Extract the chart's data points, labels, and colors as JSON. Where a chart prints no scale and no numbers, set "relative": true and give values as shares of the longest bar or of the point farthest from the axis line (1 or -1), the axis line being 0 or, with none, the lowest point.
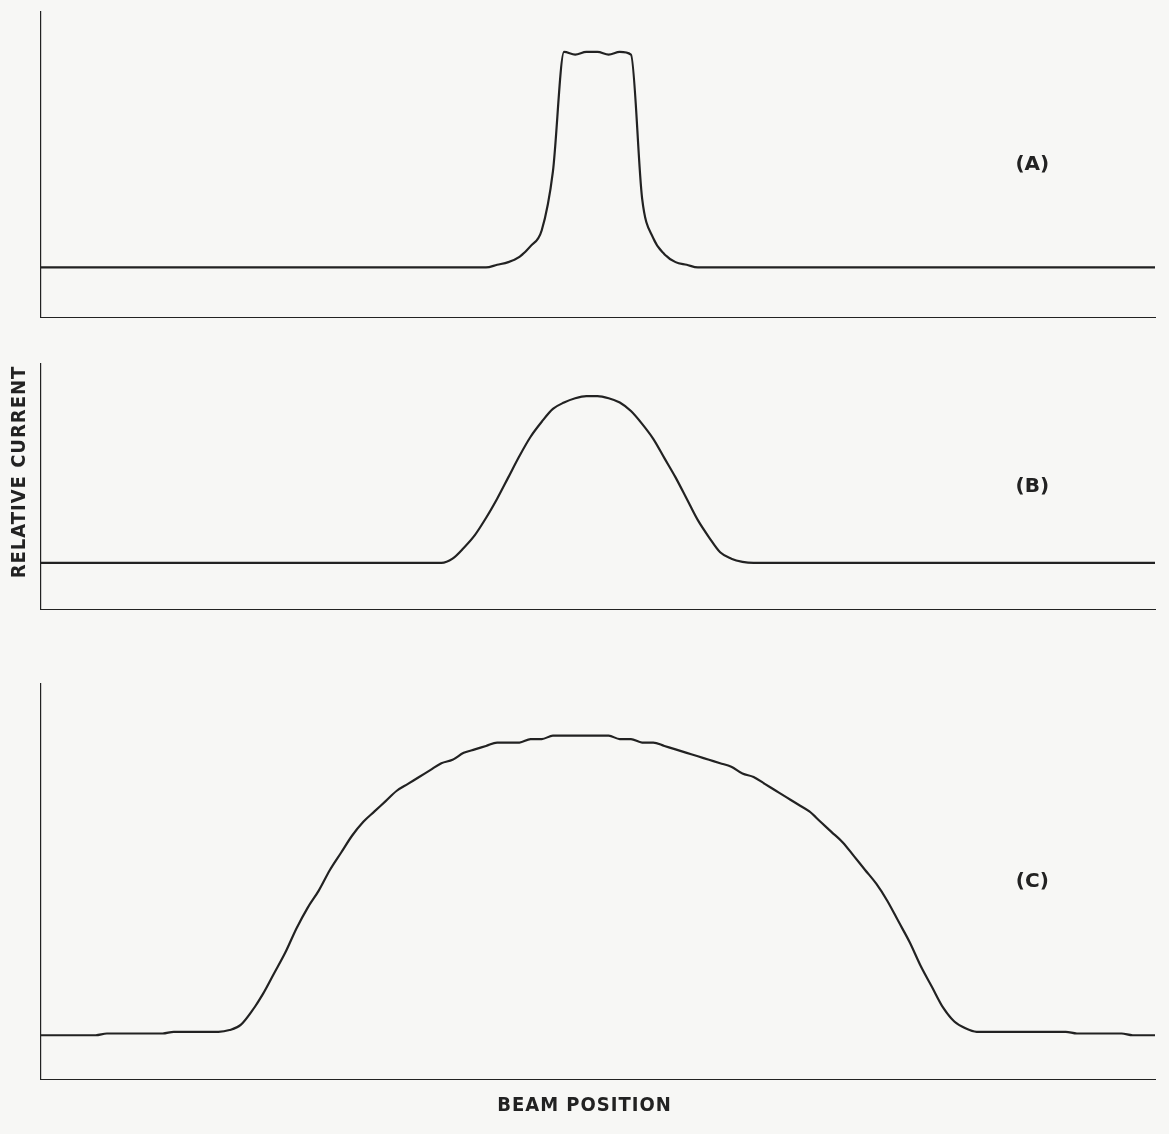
{
  "chart_data": [
    {
      "type": "line",
      "relative": true,
      "color": "#222222",
      "grid": false,
      "legend": false,
      "tick_labels": false,
      "annotations": [
        "(A)"
      ],
      "categories": [
        null,
        null,
        null,
        null,
        null,
        null,
        null,
        null,
        null,
        null,
        null,
        null,
        null,
        null,
        null,
        null,
        null,
        null,
        null,
        null,
        null,
        null,
        null,
        null,
        null,
        null,
        null,
        null,
        null,
        null,
        null,
        null,
        null,
        null,
        null,
        null,
        null,
        null,
        null,
        null,
        null,
        null,
        null,
        null,
        null,
        null,
        null,
        null,
        null,
        null,
        null,
        null,
        null,
        null,
        null,
        null,
        null,
        null,
        null,
        null,
        null,
        null,
        null,
        null,
        null,
        null,
        null,
        null,
        null,
        null,
        null,
        null,
        null,
        null,
        null,
        null,
        null,
        null,
        null,
        null,
        null,
        null,
        null,
        null,
        null,
        null,
        null,
        null,
        null,
        null,
        null,
        null,
        null,
        null,
        null,
        null,
        null,
        null,
        null,
        null,
        null
      ],
      "values": [
        0.19,
        0.19,
        0.19,
        0.19,
        0.19,
        0.19,
        0.19,
        0.19,
        0.19,
        0.19,
        0.19,
        0.19,
        0.19,
        0.19,
        0.19,
        0.19,
        0.19,
        0.19,
        0.19,
        0.19,
        0.19,
        0.19,
        0.19,
        0.19,
        0.19,
        0.19,
        0.19,
        0.19,
        0.19,
        0.19,
        0.19,
        0.19,
        0.19,
        0.19,
        0.19,
        0.19,
        0.19,
        0.19,
        0.19,
        0.19,
        0.19,
        0.2,
        0.21,
        0.23,
        0.27,
        0.33,
        0.55,
        1.0,
        0.99,
        1.0,
        1.0,
        0.99,
        1.0,
        0.99,
        0.45,
        0.3,
        0.24,
        0.21,
        0.2,
        0.19,
        0.19,
        0.19,
        0.19,
        0.19,
        0.19,
        0.19,
        0.19,
        0.19,
        0.19,
        0.19,
        0.19,
        0.19,
        0.19,
        0.19,
        0.19,
        0.19,
        0.19,
        0.19,
        0.19,
        0.19,
        0.19,
        0.19,
        0.19,
        0.19,
        0.19,
        0.19,
        0.19,
        0.19,
        0.19,
        0.19,
        0.19,
        0.19,
        0.19,
        0.19,
        0.19,
        0.19,
        0.19,
        0.19,
        0.19,
        0.19,
        0.19
      ]
    },
    {
      "type": "line",
      "relative": true,
      "color": "#222222",
      "grid": false,
      "legend": false,
      "tick_labels": false,
      "annotations": [
        "(B)"
      ],
      "ylabel": "RELATIVE CURRENT",
      "categories": [
        null,
        null,
        null,
        null,
        null,
        null,
        null,
        null,
        null,
        null,
        null,
        null,
        null,
        null,
        null,
        null,
        null,
        null,
        null,
        null,
        null,
        null,
        null,
        null,
        null,
        null,
        null,
        null,
        null,
        null,
        null,
        null,
        null,
        null,
        null,
        null,
        null,
        null,
        null,
        null,
        null,
        null,
        null,
        null,
        null,
        null,
        null,
        null,
        null,
        null,
        null,
        null,
        null,
        null,
        null,
        null,
        null,
        null,
        null,
        null,
        null,
        null,
        null,
        null,
        null,
        null,
        null,
        null,
        null,
        null,
        null,
        null,
        null,
        null,
        null,
        null,
        null,
        null,
        null,
        null,
        null,
        null,
        null,
        null,
        null,
        null,
        null,
        null,
        null,
        null,
        null,
        null,
        null,
        null,
        null,
        null,
        null,
        null,
        null,
        null,
        null
      ],
      "values": [
        0.22,
        0.22,
        0.22,
        0.22,
        0.22,
        0.22,
        0.22,
        0.22,
        0.22,
        0.22,
        0.22,
        0.22,
        0.22,
        0.22,
        0.22,
        0.22,
        0.22,
        0.22,
        0.22,
        0.22,
        0.22,
        0.22,
        0.22,
        0.22,
        0.22,
        0.22,
        0.22,
        0.22,
        0.22,
        0.22,
        0.22,
        0.22,
        0.22,
        0.22,
        0.22,
        0.22,
        0.22,
        0.24,
        0.29,
        0.35,
        0.43,
        0.52,
        0.62,
        0.72,
        0.81,
        0.88,
        0.94,
        0.97,
        0.99,
        1.0,
        1.0,
        0.99,
        0.97,
        0.93,
        0.87,
        0.8,
        0.71,
        0.62,
        0.52,
        0.42,
        0.34,
        0.27,
        0.24,
        0.225,
        0.22,
        0.22,
        0.22,
        0.22,
        0.22,
        0.22,
        0.22,
        0.22,
        0.22,
        0.22,
        0.22,
        0.22,
        0.22,
        0.22,
        0.22,
        0.22,
        0.22,
        0.22,
        0.22,
        0.22,
        0.22,
        0.22,
        0.22,
        0.22,
        0.22,
        0.22,
        0.22,
        0.22,
        0.22,
        0.22,
        0.22,
        0.22,
        0.22,
        0.22,
        0.22,
        0.22,
        0.22
      ]
    },
    {
      "type": "line",
      "relative": true,
      "color": "#222222",
      "grid": false,
      "legend": false,
      "tick_labels": false,
      "annotations": [
        "(C)"
      ],
      "xlabel": "BEAM POSITION",
      "categories": [
        null,
        null,
        null,
        null,
        null,
        null,
        null,
        null,
        null,
        null,
        null,
        null,
        null,
        null,
        null,
        null,
        null,
        null,
        null,
        null,
        null,
        null,
        null,
        null,
        null,
        null,
        null,
        null,
        null,
        null,
        null,
        null,
        null,
        null,
        null,
        null,
        null,
        null,
        null,
        null,
        null,
        null,
        null,
        null,
        null,
        null,
        null,
        null,
        null,
        null,
        null,
        null,
        null,
        null,
        null,
        null,
        null,
        null,
        null,
        null,
        null,
        null,
        null,
        null,
        null,
        null,
        null,
        null,
        null,
        null,
        null,
        null,
        null,
        null,
        null,
        null,
        null,
        null,
        null,
        null,
        null,
        null,
        null,
        null,
        null,
        null,
        null,
        null,
        null,
        null,
        null,
        null,
        null,
        null,
        null,
        null,
        null,
        null,
        null,
        null,
        null
      ],
      "values": [
        0.13,
        0.13,
        0.13,
        0.13,
        0.13,
        0.13,
        0.135,
        0.135,
        0.135,
        0.135,
        0.135,
        0.135,
        0.14,
        0.14,
        0.14,
        0.14,
        0.14,
        0.145,
        0.16,
        0.2,
        0.25,
        0.31,
        0.37,
        0.44,
        0.5,
        0.55,
        0.61,
        0.66,
        0.71,
        0.75,
        0.78,
        0.81,
        0.84,
        0.86,
        0.88,
        0.9,
        0.92,
        0.93,
        0.95,
        0.96,
        0.97,
        0.98,
        0.98,
        0.98,
        0.99,
        0.99,
        1.0,
        1.0,
        1.0,
        1.0,
        1.0,
        1.0,
        0.99,
        0.99,
        0.98,
        0.98,
        0.97,
        0.96,
        0.95,
        0.94,
        0.93,
        0.92,
        0.91,
        0.89,
        0.88,
        0.86,
        0.84,
        0.82,
        0.8,
        0.78,
        0.75,
        0.72,
        0.69,
        0.65,
        0.61,
        0.57,
        0.52,
        0.46,
        0.4,
        0.33,
        0.27,
        0.21,
        0.17,
        0.15,
        0.14,
        0.14,
        0.14,
        0.14,
        0.14,
        0.14,
        0.14,
        0.14,
        0.14,
        0.135,
        0.135,
        0.135,
        0.135,
        0.135,
        0.13,
        0.13,
        0.13
      ]
    }
  ]
}
